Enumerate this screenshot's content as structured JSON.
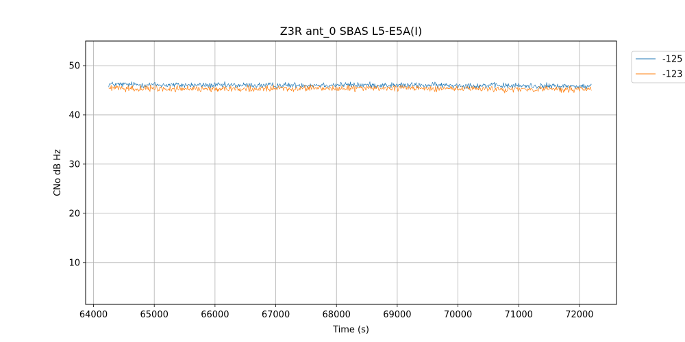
{
  "chart_data": {
    "type": "line",
    "title": "Z3R ant_0 SBAS L5-E5A(I)",
    "xlabel": "Time (s)",
    "ylabel": "CNo dB Hz",
    "xlim": [
      63870,
      72610
    ],
    "ylim": [
      1.5,
      55
    ],
    "xticks": [
      64000,
      65000,
      66000,
      67000,
      68000,
      69000,
      70000,
      71000,
      72000
    ],
    "yticks": [
      10,
      20,
      30,
      40,
      50
    ],
    "grid": true,
    "legend_position": "outside-top-right",
    "series": [
      {
        "name": "-125",
        "color": "#1f77b4",
        "x_range": [
          64250,
          72200
        ],
        "sample_step": 10,
        "mean": 46.0,
        "noise_amplitude": 0.55,
        "summary_points": [
          [
            64250,
            46.2
          ],
          [
            65000,
            46.1
          ],
          [
            66000,
            46.0
          ],
          [
            67000,
            46.0
          ],
          [
            68000,
            46.1
          ],
          [
            69000,
            46.0
          ],
          [
            70000,
            46.0
          ],
          [
            71000,
            45.9
          ],
          [
            72000,
            45.8
          ],
          [
            72200,
            45.8
          ]
        ]
      },
      {
        "name": "-123",
        "color": "#ff7f0e",
        "x_range": [
          64250,
          72200
        ],
        "sample_step": 10,
        "mean": 45.3,
        "noise_amplitude": 0.55,
        "summary_points": [
          [
            64250,
            45.4
          ],
          [
            65000,
            45.3
          ],
          [
            66000,
            45.3
          ],
          [
            67000,
            45.3
          ],
          [
            68000,
            45.4
          ],
          [
            69000,
            45.4
          ],
          [
            70000,
            45.3
          ],
          [
            71000,
            45.2
          ],
          [
            72000,
            45.2
          ],
          [
            72200,
            45.2
          ]
        ]
      }
    ]
  }
}
